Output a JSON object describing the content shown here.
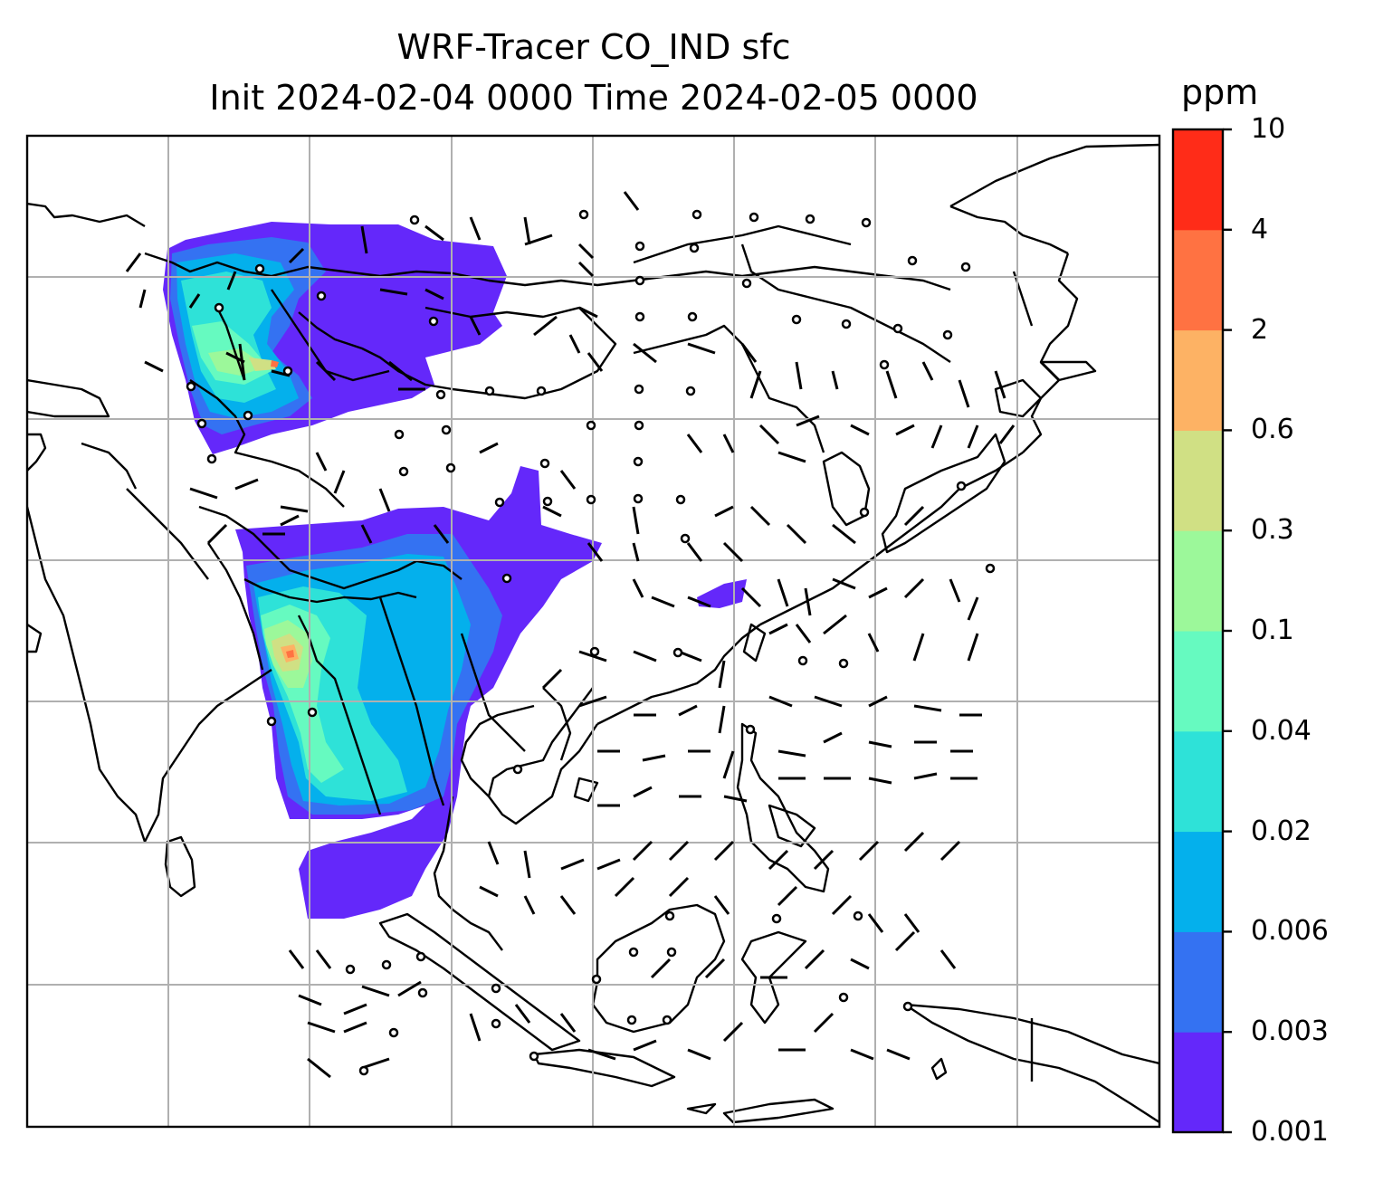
{
  "title": {
    "line1": "WRF-Tracer CO_IND sfc",
    "line2": "Init 2024-02-04 0000 Time 2024-02-05 0000"
  },
  "colorbar": {
    "unit": "ppm",
    "levels": [
      "0.001",
      "0.003",
      "0.006",
      "0.02",
      "0.04",
      "0.1",
      "0.3",
      "0.6",
      "2",
      "4",
      "10"
    ],
    "colors": [
      "#6428fa",
      "#3472f2",
      "#04b0ec",
      "#2ee2d8",
      "#66fac0",
      "#9cf89a",
      "#d0e084",
      "#fdb264",
      "#ff7242",
      "#ff2c18"
    ]
  },
  "map": {
    "gridlines": true,
    "coastline_color": "#000000",
    "grid_color": "#b0b0b0",
    "wind_barbs": true
  }
}
